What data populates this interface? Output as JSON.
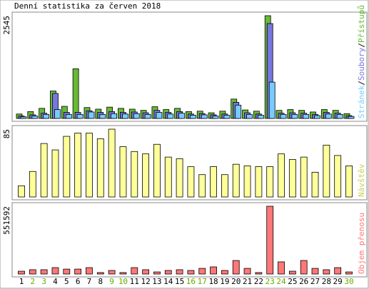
{
  "title": "Denní statistika za červen 2018",
  "legend_separator": "/",
  "chart_data": [
    {
      "type": "bar",
      "ylim": [
        0,
        2545
      ],
      "yticks": [
        2545
      ],
      "series": [
        {
          "name": "Přístupů",
          "color": "#66bb33",
          "values": [
            110,
            170,
            250,
            680,
            300,
            1230,
            270,
            230,
            280,
            250,
            230,
            200,
            290,
            220,
            250,
            170,
            180,
            140,
            180,
            480,
            210,
            180,
            2545,
            200,
            220,
            200,
            160,
            220,
            200,
            120
          ]
        },
        {
          "name": "Soubory",
          "color": "#7777dd",
          "values": [
            60,
            90,
            130,
            620,
            150,
            150,
            190,
            150,
            170,
            150,
            160,
            140,
            200,
            150,
            170,
            110,
            120,
            90,
            110,
            400,
            140,
            110,
            2350,
            130,
            140,
            130,
            100,
            150,
            130,
            70
          ]
        },
        {
          "name": "Stránek",
          "color": "#77ccff",
          "values": [
            40,
            60,
            100,
            220,
            100,
            100,
            160,
            100,
            120,
            110,
            120,
            100,
            150,
            110,
            130,
            80,
            90,
            60,
            80,
            330,
            100,
            80,
            900,
            100,
            100,
            100,
            70,
            110,
            100,
            50
          ]
        }
      ]
    },
    {
      "type": "bar",
      "ylim": [
        0,
        85
      ],
      "yticks": [
        85
      ],
      "series": [
        {
          "name": "Návštěv",
          "color": "#ffff99",
          "label_color": "#cccc55",
          "values": [
            14,
            32,
            67,
            59,
            76,
            80,
            80,
            73,
            85,
            63,
            57,
            54,
            66,
            50,
            48,
            38,
            28,
            38,
            28,
            41,
            39,
            38,
            38,
            54,
            47,
            50,
            31,
            65,
            52,
            39
          ]
        }
      ]
    },
    {
      "type": "bar",
      "ylim": [
        0,
        551592
      ],
      "yticks": [
        551592
      ],
      "categories": [
        "1",
        "2",
        "3",
        "4",
        "5",
        "6",
        "7",
        "8",
        "9",
        "10",
        "11",
        "12",
        "13",
        "14",
        "15",
        "16",
        "17",
        "18",
        "19",
        "20",
        "21",
        "22",
        "23",
        "24",
        "25",
        "26",
        "27",
        "28",
        "29",
        "30"
      ],
      "category_colors": [
        "#000",
        "#66aa00",
        "#66aa00",
        "#000",
        "#000",
        "#000",
        "#000",
        "#000",
        "#66aa00",
        "#66aa00",
        "#000",
        "#000",
        "#000",
        "#000",
        "#000",
        "#66aa00",
        "#66aa00",
        "#000",
        "#000",
        "#000",
        "#000",
        "#000",
        "#66aa00",
        "#66aa00",
        "#000",
        "#000",
        "#000",
        "#000",
        "#000",
        "#66aa00"
      ],
      "series": [
        {
          "name": "Objem přenosu",
          "color": "#ff7777",
          "values": [
            23000,
            35000,
            35000,
            52000,
            40000,
            40000,
            52000,
            12000,
            29000,
            12000,
            52000,
            35000,
            17000,
            29000,
            35000,
            29000,
            46000,
            58000,
            29000,
            110000,
            46000,
            12000,
            551592,
            99000,
            23000,
            110000,
            46000,
            35000,
            52000,
            17000
          ]
        }
      ]
    }
  ]
}
